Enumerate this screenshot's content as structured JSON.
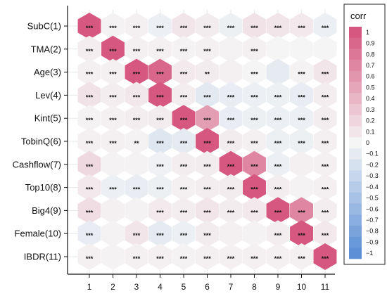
{
  "chart_data": {
    "type": "heatmap",
    "title": "",
    "xlabel": "",
    "ylabel": "",
    "row_labels": [
      "SubC(1)",
      "TMA(2)",
      "Age(3)",
      "Lev(4)",
      "Kint(5)",
      "TobinQ(6)",
      "Cashflow(7)",
      "Top10(8)",
      "Big4(9)",
      "Female(10)",
      "IBDR(11)"
    ],
    "col_labels": [
      "1",
      "2",
      "3",
      "4",
      "5",
      "6",
      "7",
      "8",
      "9",
      "10",
      "11"
    ],
    "values": [
      [
        1.0,
        0.02,
        0.04,
        -0.06,
        0.1,
        0.06,
        -0.05,
        0.12,
        0.1,
        0.08,
        -0.06
      ],
      [
        0.05,
        1.0,
        0.03,
        0.03,
        0.02,
        0.03,
        0.02,
        0.03,
        0.0,
        0.0,
        0.0
      ],
      [
        0.04,
        0.03,
        1.0,
        0.9,
        0.07,
        0.06,
        0.03,
        0.0,
        -0.1,
        0.02,
        0.1
      ],
      [
        0.12,
        0.05,
        0.09,
        1.0,
        0.05,
        -0.12,
        -0.08,
        -0.06,
        -0.05,
        -0.08,
        0.05
      ],
      [
        0.02,
        0.03,
        0.05,
        0.06,
        1.0,
        0.55,
        -0.08,
        -0.05,
        -0.06,
        -0.06,
        0.05
      ],
      [
        0.04,
        0.03,
        0.02,
        -0.15,
        -0.1,
        1.0,
        0.06,
        0.03,
        -0.05,
        -0.05,
        0.04
      ],
      [
        0.18,
        0.02,
        0.02,
        -0.04,
        0.05,
        0.06,
        1.0,
        0.7,
        -0.06,
        0.03,
        0.04
      ],
      [
        0.08,
        -0.06,
        -0.08,
        -0.05,
        0.03,
        0.05,
        0.06,
        1.0,
        0.05,
        0.02,
        0.03
      ],
      [
        0.15,
        0.03,
        0.02,
        0.07,
        0.05,
        0.1,
        0.06,
        0.08,
        1.0,
        0.7,
        0.05
      ],
      [
        -0.08,
        0.02,
        0.1,
        -0.1,
        -0.06,
        0.06,
        0.03,
        0.02,
        0.05,
        1.0,
        0.08
      ],
      [
        0.03,
        0.02,
        0.03,
        0.03,
        0.02,
        0.03,
        0.03,
        0.03,
        0.04,
        0.04,
        1.0
      ]
    ],
    "significance": [
      [
        "***",
        "***",
        "***",
        "***",
        "***",
        "***",
        "***",
        "***",
        "***",
        "***",
        "***"
      ],
      [
        "***",
        "***",
        "***",
        "***",
        "***",
        "***",
        "",
        "***",
        "",
        "",
        ""
      ],
      [
        "***",
        "***",
        "***",
        "***",
        "***",
        "**",
        "",
        "***",
        "",
        "***",
        "***"
      ],
      [
        "***",
        "***",
        "***",
        "***",
        "***",
        "***",
        "***",
        "***",
        "***",
        "***",
        "***"
      ],
      [
        "***",
        "***",
        "***",
        "***",
        "***",
        "***",
        "***",
        "***",
        "***",
        "***",
        "***"
      ],
      [
        "***",
        "***",
        "**",
        "***",
        "***",
        "***",
        "***",
        "***",
        "***",
        "***",
        "***"
      ],
      [
        "***",
        "",
        "",
        "***",
        "***",
        "***",
        "***",
        "***",
        "***",
        "",
        "***"
      ],
      [
        "***",
        "***",
        "***",
        "***",
        "***",
        "***",
        "***",
        "***",
        "***",
        "",
        "***"
      ],
      [
        "***",
        "",
        "",
        "***",
        "***",
        "***",
        "***",
        "***",
        "***",
        "***",
        "***"
      ],
      [
        "***",
        "",
        "***",
        "***",
        "***",
        "***",
        "",
        "",
        "***",
        "***",
        "***"
      ],
      [
        "***",
        "",
        "***",
        "***",
        "***",
        "***",
        "***",
        "***",
        "***",
        "***",
        "***"
      ]
    ],
    "zlim": [
      -1,
      1
    ],
    "colorbar": {
      "title": "corr",
      "ticks": [
        "1",
        "0.9",
        "0.8",
        "0.7",
        "0.6",
        "0.5",
        "0.4",
        "0.3",
        "0.2",
        "0.1",
        "0",
        "−0.1",
        "−0.2",
        "−0.3",
        "−0.4",
        "−0.5",
        "−0.6",
        "−0.7",
        "−0.8",
        "−0.9",
        "−1"
      ],
      "placement": "right"
    },
    "colors": {
      "positive": "#D6577F",
      "neutral": "#F5F5F5",
      "negative": "#5B8FD6"
    },
    "grid": true
  }
}
